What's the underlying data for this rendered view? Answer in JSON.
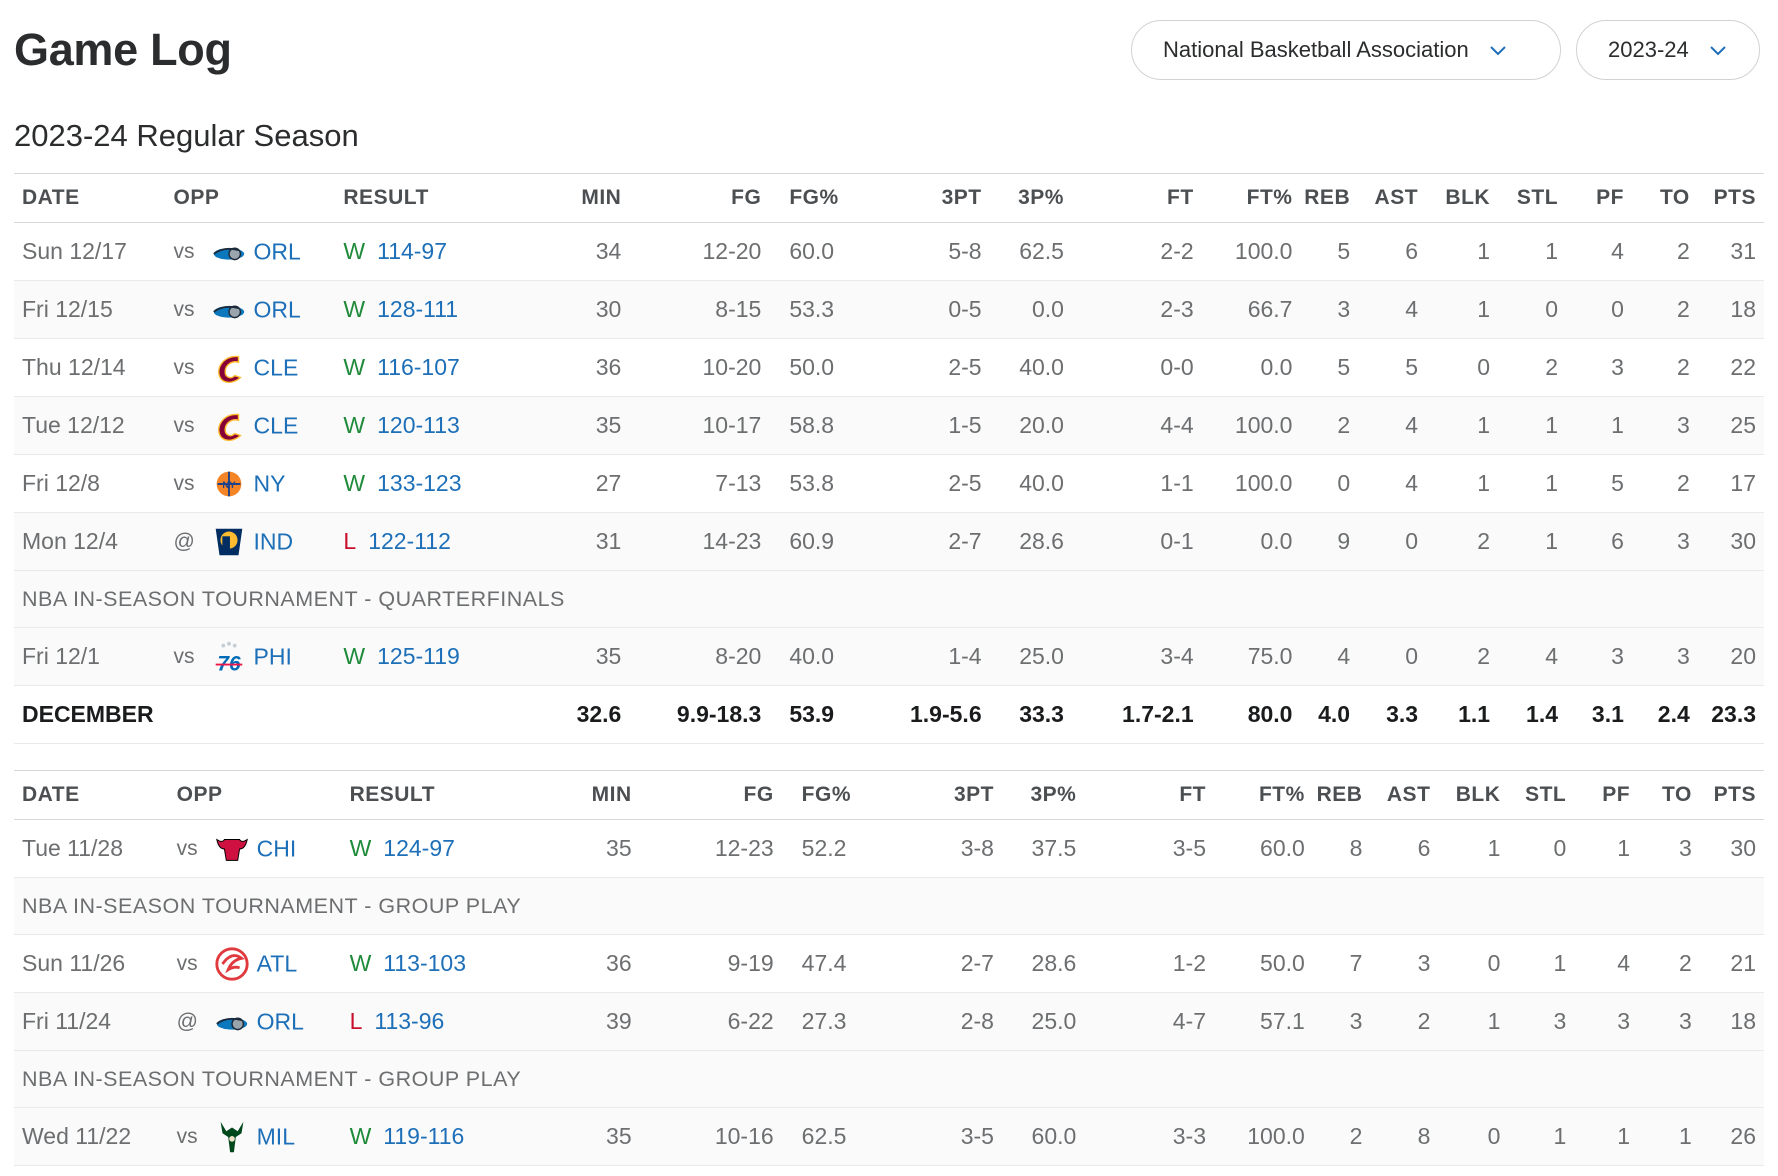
{
  "header": {
    "title": "Game Log",
    "league_select": "National Basketball Association",
    "season_select": "2023-24",
    "season_heading": "2023-24 Regular Season"
  },
  "columns": [
    "DATE",
    "OPP",
    "RESULT",
    "MIN",
    "FG",
    "FG%",
    "3PT",
    "3P%",
    "FT",
    "FT%",
    "REB",
    "AST",
    "BLK",
    "STL",
    "PF",
    "TO",
    "PTS"
  ],
  "december": {
    "games": [
      {
        "date": "Sun 12/17",
        "loc": "vs",
        "team": "ORL",
        "logo": "orl-logo",
        "wl": "W",
        "score": "114-97",
        "min": "34",
        "fg": "12-20",
        "fgp": "60.0",
        "tp": "5-8",
        "tpp": "62.5",
        "ft": "2-2",
        "ftp": "100.0",
        "reb": "5",
        "ast": "6",
        "blk": "1",
        "stl": "1",
        "pf": "4",
        "to": "2",
        "pts": "31"
      },
      {
        "date": "Fri 12/15",
        "loc": "vs",
        "team": "ORL",
        "logo": "orl-logo",
        "wl": "W",
        "score": "128-111",
        "min": "30",
        "fg": "8-15",
        "fgp": "53.3",
        "tp": "0-5",
        "tpp": "0.0",
        "ft": "2-3",
        "ftp": "66.7",
        "reb": "3",
        "ast": "4",
        "blk": "1",
        "stl": "0",
        "pf": "0",
        "to": "2",
        "pts": "18"
      },
      {
        "date": "Thu 12/14",
        "loc": "vs",
        "team": "CLE",
        "logo": "cle-logo",
        "wl": "W",
        "score": "116-107",
        "min": "36",
        "fg": "10-20",
        "fgp": "50.0",
        "tp": "2-5",
        "tpp": "40.0",
        "ft": "0-0",
        "ftp": "0.0",
        "reb": "5",
        "ast": "5",
        "blk": "0",
        "stl": "2",
        "pf": "3",
        "to": "2",
        "pts": "22"
      },
      {
        "date": "Tue 12/12",
        "loc": "vs",
        "team": "CLE",
        "logo": "cle-logo",
        "wl": "W",
        "score": "120-113",
        "min": "35",
        "fg": "10-17",
        "fgp": "58.8",
        "tp": "1-5",
        "tpp": "20.0",
        "ft": "4-4",
        "ftp": "100.0",
        "reb": "2",
        "ast": "4",
        "blk": "1",
        "stl": "1",
        "pf": "1",
        "to": "3",
        "pts": "25"
      },
      {
        "date": "Fri 12/8",
        "loc": "vs",
        "team": "NY",
        "logo": "ny-logo",
        "wl": "W",
        "score": "133-123",
        "min": "27",
        "fg": "7-13",
        "fgp": "53.8",
        "tp": "2-5",
        "tpp": "40.0",
        "ft": "1-1",
        "ftp": "100.0",
        "reb": "0",
        "ast": "4",
        "blk": "1",
        "stl": "1",
        "pf": "5",
        "to": "2",
        "pts": "17"
      },
      {
        "date": "Mon 12/4",
        "loc": "@",
        "team": "IND",
        "logo": "ind-logo",
        "wl": "L",
        "score": "122-112",
        "min": "31",
        "fg": "14-23",
        "fgp": "60.9",
        "tp": "2-7",
        "tpp": "28.6",
        "ft": "0-1",
        "ftp": "0.0",
        "reb": "9",
        "ast": "0",
        "blk": "2",
        "stl": "1",
        "pf": "6",
        "to": "3",
        "pts": "30"
      }
    ],
    "note": "NBA IN-SEASON TOURNAMENT - QUARTERFINALS",
    "after_note": {
      "date": "Fri 12/1",
      "loc": "vs",
      "team": "PHI",
      "logo": "phi-logo",
      "wl": "W",
      "score": "125-119",
      "min": "35",
      "fg": "8-20",
      "fgp": "40.0",
      "tp": "1-4",
      "tpp": "25.0",
      "ft": "3-4",
      "ftp": "75.0",
      "reb": "4",
      "ast": "0",
      "blk": "2",
      "stl": "4",
      "pf": "3",
      "to": "3",
      "pts": "20"
    },
    "total": {
      "label": "DECEMBER",
      "min": "32.6",
      "fg": "9.9-18.3",
      "fgp": "53.9",
      "tp": "1.9-5.6",
      "tpp": "33.3",
      "ft": "1.7-2.1",
      "ftp": "80.0",
      "reb": "4.0",
      "ast": "3.3",
      "blk": "1.1",
      "stl": "1.4",
      "pf": "3.1",
      "to": "2.4",
      "pts": "23.3"
    }
  },
  "november": {
    "g1": {
      "date": "Tue 11/28",
      "loc": "vs",
      "team": "CHI",
      "logo": "chi-logo",
      "wl": "W",
      "score": "124-97",
      "min": "35",
      "fg": "12-23",
      "fgp": "52.2",
      "tp": "3-8",
      "tpp": "37.5",
      "ft": "3-5",
      "ftp": "60.0",
      "reb": "8",
      "ast": "6",
      "blk": "1",
      "stl": "0",
      "pf": "1",
      "to": "3",
      "pts": "30"
    },
    "note1": "NBA IN-SEASON TOURNAMENT - GROUP PLAY",
    "g2": {
      "date": "Sun 11/26",
      "loc": "vs",
      "team": "ATL",
      "logo": "atl-logo",
      "wl": "W",
      "score": "113-103",
      "min": "36",
      "fg": "9-19",
      "fgp": "47.4",
      "tp": "2-7",
      "tpp": "28.6",
      "ft": "1-2",
      "ftp": "50.0",
      "reb": "7",
      "ast": "3",
      "blk": "0",
      "stl": "1",
      "pf": "4",
      "to": "2",
      "pts": "21"
    },
    "g3": {
      "date": "Fri 11/24",
      "loc": "@",
      "team": "ORL",
      "logo": "orl-logo",
      "wl": "L",
      "score": "113-96",
      "min": "39",
      "fg": "6-22",
      "fgp": "27.3",
      "tp": "2-8",
      "tpp": "25.0",
      "ft": "4-7",
      "ftp": "57.1",
      "reb": "3",
      "ast": "2",
      "blk": "1",
      "stl": "3",
      "pf": "3",
      "to": "3",
      "pts": "18"
    },
    "note2": "NBA IN-SEASON TOURNAMENT - GROUP PLAY",
    "g4": {
      "date": "Wed 11/22",
      "loc": "vs",
      "team": "MIL",
      "logo": "mil-logo",
      "wl": "W",
      "score": "119-116",
      "min": "35",
      "fg": "10-16",
      "fgp": "62.5",
      "tp": "3-5",
      "tpp": "60.0",
      "ft": "3-3",
      "ftp": "100.0",
      "reb": "2",
      "ast": "8",
      "blk": "0",
      "stl": "1",
      "pf": "1",
      "to": "1",
      "pts": "26"
    }
  }
}
